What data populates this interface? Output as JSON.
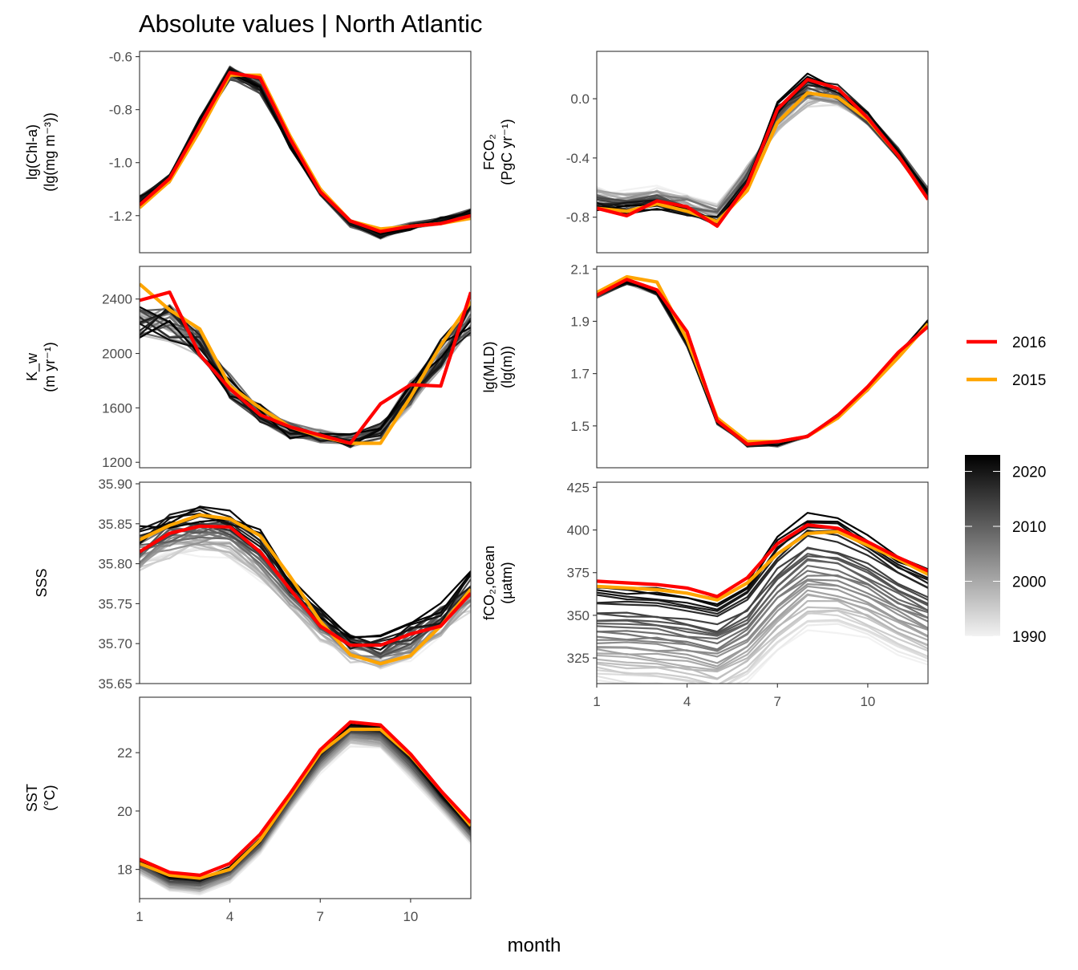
{
  "chart_data": {
    "type": "line",
    "title": "Absolute values | North Atlantic",
    "xlabel": "month",
    "x": [
      1,
      2,
      3,
      4,
      5,
      6,
      7,
      8,
      9,
      10,
      11,
      12
    ],
    "x_ticks": [
      1,
      4,
      7,
      10
    ],
    "x_range": [
      1,
      12
    ],
    "legend_lines": [
      {
        "name": "2016",
        "color": "#ff0000"
      },
      {
        "name": "2015",
        "color": "#ffa500"
      }
    ],
    "colorbar": {
      "ticks": [
        "2020",
        "2010",
        "2000",
        "1990"
      ],
      "range": [
        1990,
        2023
      ],
      "color_low": "#f2f2f2",
      "color_high": "#000000"
    },
    "panels": [
      {
        "id": "chl",
        "ylabel_lines": [
          "lg(Chl-a)",
          "(lg(mg m⁻³))"
        ],
        "ylim": [
          -1.34,
          -0.58
        ],
        "yticks": [
          -1.2,
          -1.0,
          -0.8,
          -0.6
        ],
        "ytick_labels": [
          "-1.2",
          "-1.0",
          "-0.8",
          "-0.6"
        ],
        "background": {
          "years": [
            1998,
            2023
          ],
          "base": [
            -1.14,
            -1.06,
            -0.85,
            -0.66,
            -0.71,
            -0.93,
            -1.11,
            -1.23,
            -1.27,
            -1.24,
            -1.22,
            -1.19
          ],
          "amp": [
            0.015,
            0.015,
            0.02,
            0.03,
            0.03,
            0.015,
            0.015,
            0.015,
            0.02,
            0.015,
            0.015,
            0.015
          ],
          "trend": [
            0,
            0,
            0,
            0,
            0,
            0,
            0,
            0,
            0,
            0,
            0,
            0
          ]
        },
        "highlight": [
          {
            "name": "2015",
            "color": "#ffa500",
            "values": [
              -1.17,
              -1.07,
              -0.88,
              -0.67,
              -0.67,
              -0.9,
              -1.1,
              -1.22,
              -1.25,
              -1.24,
              -1.23,
              -1.21
            ]
          },
          {
            "name": "2016",
            "color": "#ff0000",
            "values": [
              -1.16,
              -1.06,
              -0.86,
              -0.66,
              -0.68,
              -0.91,
              -1.11,
              -1.22,
              -1.26,
              -1.24,
              -1.23,
              -1.2
            ]
          }
        ]
      },
      {
        "id": "fco2",
        "ylabel_lines": [
          "FCO₂",
          "(PgC yr⁻¹)"
        ],
        "ylim": [
          -1.04,
          0.32
        ],
        "yticks": [
          -0.8,
          -0.4,
          0.0
        ],
        "ytick_labels": [
          "-0.8",
          "-0.4",
          "0.0"
        ],
        "background": {
          "years": [
            1990,
            2023
          ],
          "base": [
            -0.7,
            -0.72,
            -0.7,
            -0.74,
            -0.82,
            -0.55,
            -0.1,
            0.08,
            0.05,
            -0.13,
            -0.37,
            -0.65
          ],
          "amp": [
            0.04,
            0.04,
            0.04,
            0.04,
            0.05,
            0.05,
            0.05,
            0.06,
            0.05,
            0.04,
            0.04,
            0.04
          ],
          "trend": [
            -0.1,
            -0.1,
            -0.1,
            -0.1,
            -0.09,
            -0.1,
            0.12,
            0.14,
            0.09,
            0.02,
            0.0,
            -0.03
          ]
        },
        "highlight": [
          {
            "name": "2015",
            "color": "#ffa500",
            "values": [
              -0.74,
              -0.76,
              -0.71,
              -0.76,
              -0.83,
              -0.62,
              -0.16,
              0.04,
              0.01,
              -0.14,
              -0.38,
              -0.68
            ]
          },
          {
            "name": "2016",
            "color": "#ff0000",
            "values": [
              -0.74,
              -0.79,
              -0.69,
              -0.73,
              -0.86,
              -0.58,
              -0.07,
              0.13,
              0.07,
              -0.13,
              -0.38,
              -0.68
            ]
          }
        ]
      },
      {
        "id": "kw",
        "ylabel_lines": [
          "K_w",
          "(m yr⁻¹)"
        ],
        "ylim": [
          1160,
          2640
        ],
        "yticks": [
          1200,
          1600,
          2000,
          2400
        ],
        "ytick_labels": [
          "1200",
          "1600",
          "2000",
          "2400"
        ],
        "background": {
          "years": [
            1990,
            2023
          ],
          "base": [
            2230,
            2220,
            2050,
            1760,
            1560,
            1430,
            1390,
            1360,
            1430,
            1700,
            2000,
            2250
          ],
          "amp": [
            120,
            140,
            110,
            90,
            70,
            60,
            50,
            50,
            60,
            100,
            120,
            150
          ],
          "trend": [
            0,
            0,
            0,
            0,
            0,
            0,
            0,
            0,
            0,
            0,
            0,
            0
          ]
        },
        "highlight": [
          {
            "name": "2015",
            "color": "#ffa500",
            "values": [
              2510,
              2320,
              2180,
              1760,
              1600,
              1460,
              1390,
              1340,
              1340,
              1680,
              2060,
              2380
            ]
          },
          {
            "name": "2016",
            "color": "#ff0000",
            "values": [
              2390,
              2450,
              1990,
              1740,
              1550,
              1460,
              1400,
              1340,
              1630,
              1770,
              1760,
              2450
            ]
          }
        ]
      },
      {
        "id": "mld",
        "ylabel_lines": [
          "lg(MLD)",
          "(lg(m))"
        ],
        "ylim": [
          1.34,
          2.11
        ],
        "yticks": [
          1.5,
          1.7,
          1.9,
          2.1
        ],
        "ytick_labels": [
          "1.5",
          "1.7",
          "1.9",
          "2.1"
        ],
        "background": {
          "years": [
            1990,
            2023
          ],
          "base": [
            2.0,
            2.05,
            2.01,
            1.82,
            1.52,
            1.43,
            1.43,
            1.46,
            1.54,
            1.64,
            1.77,
            1.9
          ],
          "amp": [
            0.01,
            0.01,
            0.01,
            0.02,
            0.015,
            0.01,
            0.01,
            0.005,
            0.005,
            0.005,
            0.005,
            0.005
          ],
          "trend": [
            0,
            0,
            0,
            0,
            0,
            0,
            0,
            0,
            0,
            0,
            0,
            0
          ]
        },
        "highlight": [
          {
            "name": "2015",
            "color": "#ffa500",
            "values": [
              2.01,
              2.07,
              2.05,
              1.83,
              1.53,
              1.44,
              1.44,
              1.46,
              1.53,
              1.64,
              1.76,
              1.89
            ]
          },
          {
            "name": "2016",
            "color": "#ff0000",
            "values": [
              2.0,
              2.06,
              2.02,
              1.86,
              1.52,
              1.43,
              1.44,
              1.46,
              1.54,
              1.65,
              1.78,
              1.88
            ]
          }
        ]
      },
      {
        "id": "sss",
        "ylabel_lines": [
          "SSS"
        ],
        "ylim": [
          35.65,
          35.902
        ],
        "yticks": [
          35.65,
          35.7,
          35.75,
          35.8,
          35.85,
          35.9
        ],
        "ytick_labels": [
          "35.65",
          "35.70",
          "35.75",
          "35.80",
          "35.85",
          "35.90"
        ],
        "background": {
          "years": [
            1990,
            2023
          ],
          "base": [
            35.825,
            35.845,
            35.852,
            35.85,
            35.82,
            35.77,
            35.73,
            35.7,
            35.695,
            35.71,
            35.735,
            35.77
          ],
          "amp": [
            0.012,
            0.012,
            0.012,
            0.012,
            0.012,
            0.01,
            0.01,
            0.01,
            0.01,
            0.012,
            0.015,
            0.015
          ],
          "trend": [
            0.045,
            0.045,
            0.05,
            0.05,
            0.045,
            0.03,
            0.03,
            0.025,
            0.03,
            0.03,
            0.025,
            0.03
          ]
        },
        "highlight": [
          {
            "name": "2015",
            "color": "#ffa500",
            "values": [
              35.83,
              35.848,
              35.861,
              35.856,
              35.835,
              35.784,
              35.728,
              35.686,
              35.675,
              35.685,
              35.722,
              35.768
            ]
          },
          {
            "name": "2016",
            "color": "#ff0000",
            "values": [
              35.815,
              35.838,
              35.847,
              35.846,
              35.815,
              35.768,
              35.722,
              35.698,
              35.698,
              35.712,
              35.722,
              35.763
            ]
          }
        ]
      },
      {
        "id": "fco2ocean",
        "ylabel_lines": [
          "fCO₂,ocean",
          "(µatm)"
        ],
        "ylim": [
          310,
          428
        ],
        "yticks": [
          325,
          350,
          375,
          400,
          425
        ],
        "ytick_labels": [
          "325",
          "350",
          "375",
          "400",
          "425"
        ],
        "background": {
          "years": [
            1990,
            2023
          ],
          "base": [
            353,
            352,
            351,
            349,
            345,
            355,
            378,
            392,
            390,
            381,
            370,
            362
          ],
          "amp": [
            1.5,
            1.5,
            1.5,
            1.5,
            1.5,
            1.5,
            2,
            2,
            2,
            1.5,
            1.5,
            1.5
          ],
          "trend": [
            58,
            58,
            58,
            58,
            58,
            58,
            66,
            67,
            65,
            60,
            57,
            56
          ]
        },
        "highlight": [
          {
            "name": "2015",
            "color": "#ffa500",
            "values": [
              367,
              366,
              365,
              363,
              359,
              369,
              386,
              398,
              399,
              391,
              383,
              374
            ]
          },
          {
            "name": "2016",
            "color": "#ff0000",
            "values": [
              370,
              369,
              368,
              366,
              361,
              372,
              392,
              403,
              401,
              393,
              384,
              376
            ]
          }
        ]
      },
      {
        "id": "sst",
        "ylabel_lines": [
          "SST",
          "(°C)"
        ],
        "ylim": [
          17.0,
          23.9
        ],
        "yticks": [
          18,
          20,
          22
        ],
        "ytick_labels": [
          "18",
          "20",
          "22"
        ],
        "background": {
          "years": [
            1990,
            2023
          ],
          "base": [
            18.2,
            17.65,
            17.55,
            17.95,
            18.9,
            20.4,
            21.85,
            22.8,
            22.7,
            21.7,
            20.45,
            19.3
          ],
          "amp": [
            0.05,
            0.05,
            0.05,
            0.05,
            0.05,
            0.05,
            0.06,
            0.06,
            0.06,
            0.06,
            0.05,
            0.05
          ],
          "trend": [
            0.45,
            0.5,
            0.5,
            0.5,
            0.45,
            0.5,
            0.7,
            0.75,
            0.75,
            0.75,
            0.55,
            0.55
          ]
        },
        "highlight": [
          {
            "name": "2015",
            "color": "#ffa500",
            "values": [
              18.2,
              17.8,
              17.7,
              18.0,
              19.0,
              20.5,
              22.0,
              22.8,
              22.8,
              21.9,
              20.7,
              19.5
            ]
          },
          {
            "name": "2016",
            "color": "#ff0000",
            "values": [
              18.35,
              17.9,
              17.8,
              18.2,
              19.2,
              20.6,
              22.1,
              23.05,
              22.95,
              21.95,
              20.7,
              19.6
            ]
          }
        ]
      }
    ]
  }
}
